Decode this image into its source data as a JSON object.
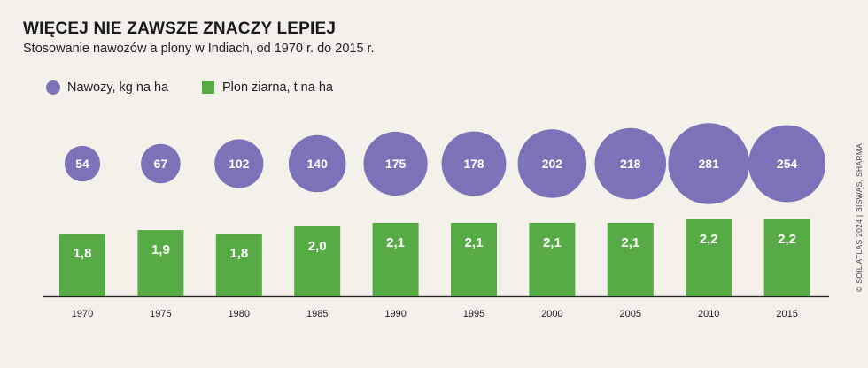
{
  "chart_data": {
    "type": "bar",
    "title": "WIĘCEJ NIE ZAWSZE ZNACZY LEPIEJ",
    "subtitle": "Stosowanie nawozów a plony w Indiach, od 1970 r. do 2015 r.",
    "categories": [
      "1970",
      "1975",
      "1980",
      "1985",
      "1990",
      "1995",
      "2000",
      "2005",
      "2010",
      "2015"
    ],
    "series": [
      {
        "name": "Nawozy, kg na ha",
        "mark": "bubble",
        "color": "#7b72b8",
        "values": [
          54,
          67,
          102,
          140,
          175,
          178,
          202,
          218,
          281,
          254
        ],
        "labels": [
          "54",
          "67",
          "102",
          "140",
          "175",
          "178",
          "202",
          "218",
          "281",
          "254"
        ]
      },
      {
        "name": "Plon ziarna, t na ha",
        "mark": "bar",
        "color": "#56ab45",
        "values": [
          1.8,
          1.9,
          1.8,
          2.0,
          2.1,
          2.1,
          2.1,
          2.1,
          2.2,
          2.2
        ],
        "labels": [
          "1,8",
          "1,9",
          "1,8",
          "2,0",
          "2,1",
          "2,1",
          "2,1",
          "2,1",
          "2,2",
          "2,2"
        ]
      }
    ],
    "ylim": [
      0,
      2.2
    ],
    "xlabel": "",
    "ylabel": ""
  },
  "source": "© SOIL ATLAS 2024 | BISWAS, SHARMA"
}
